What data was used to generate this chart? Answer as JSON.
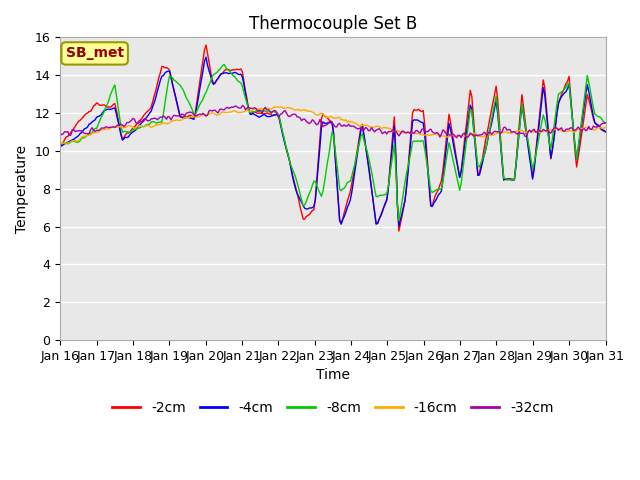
{
  "title": "Thermocouple Set B",
  "xlabel": "Time",
  "ylabel": "Temperature",
  "annotation": "SB_met",
  "ylim": [
    0,
    16
  ],
  "x_tick_labels": [
    "Jan 16",
    "Jan 17",
    "Jan 18",
    "Jan 19",
    "Jan 20",
    "Jan 21",
    "Jan 22",
    "Jan 23",
    "Jan 24",
    "Jan 25",
    "Jan 26",
    "Jan 27",
    "Jan 28",
    "Jan 29",
    "Jan 30",
    "Jan 31"
  ],
  "series_colors": [
    "#ff0000",
    "#0000ff",
    "#00cc00",
    "#ffaa00",
    "#aa00aa"
  ],
  "series_labels": [
    "-2cm",
    "-4cm",
    "-8cm",
    "-16cm",
    "-32cm"
  ],
  "bg_color": "#e8e8e8",
  "grid_color": "#ffffff",
  "annotation_bg": "#ffff99",
  "annotation_fg": "#990000",
  "annotation_border": "#999900",
  "fig_bg": "#ffffff",
  "title_fontsize": 12,
  "axis_fontsize": 10,
  "tick_fontsize": 9,
  "legend_fontsize": 10
}
